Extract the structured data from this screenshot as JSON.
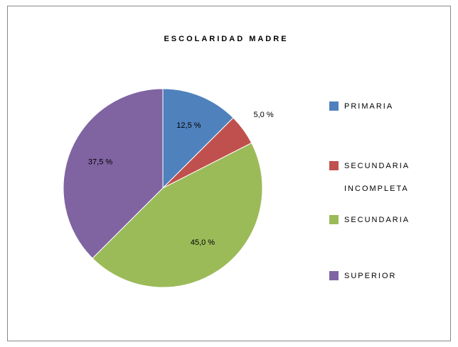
{
  "chart_data": {
    "type": "pie",
    "title": "ESCOLARIDAD MADRE",
    "categories": [
      "PRIMARIA",
      "SECUNDARIA INCOMPLETA",
      "SECUNDARIA",
      "SUPERIOR"
    ],
    "values": [
      12.5,
      5.0,
      45.0,
      37.5
    ],
    "value_labels": [
      "12,5 %",
      "5,0 %",
      "45,0 %",
      "37,5 %"
    ],
    "colors": [
      "#4f81bd",
      "#c0504d",
      "#9bbb59",
      "#8064a2"
    ],
    "legend": "right"
  }
}
